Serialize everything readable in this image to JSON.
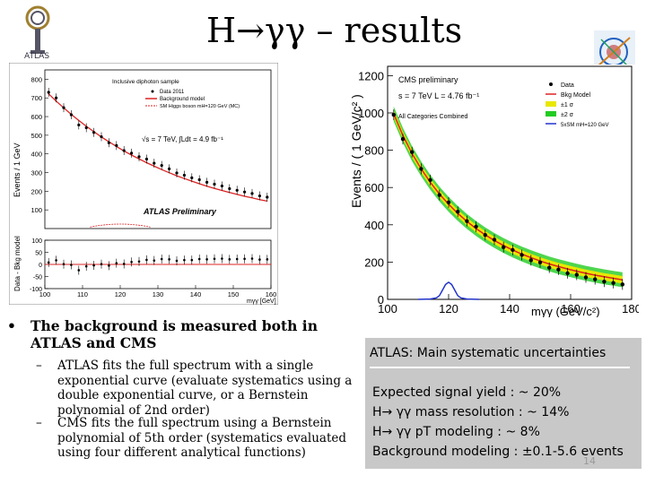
{
  "slide": {
    "title": "H→γγ – results",
    "atlas_logo_text": "ATLAS",
    "page_number": "14"
  },
  "bullets": {
    "main": "The background is measured both in ATLAS and CMS",
    "sub": [
      "ATLAS fits the full spectrum with a single exponential curve (evaluate systematics using a double exponential curve, or a Bernstein polynomial of 2nd order)",
      "CMS fits the full spectrum using a Bernstein polynomial of 5th order (systematics evaluated using four different analytical functions)"
    ]
  },
  "systematics": {
    "title": "ATLAS: Main systematic uncertainties",
    "items": [
      "Expected signal yield   : ~ 20%",
      "H→ γγ mass resolution : ~ 14%",
      "H→ γγ pT modeling        : ~ 8%",
      "Background modeling    : ±0.1-5.6 events"
    ]
  },
  "colors": {
    "fit_red": "#dd2222",
    "band_yellow": "#e8e800",
    "band_green": "#22cc22",
    "signal_blue": "#2233cc",
    "panel_grey": "#c8c8c8"
  },
  "chart_data": [
    {
      "type": "scatter",
      "name": "atlas",
      "title": "Inclusive diphoton sample",
      "legend": [
        "Data 2011",
        "Background model",
        "SM Higgs boson mH=120 GeV (MC)"
      ],
      "annotation_energy": "√s = 7 TeV, ∫Ldt = 4.9 fb⁻¹",
      "annotation_label": "ATLAS Preliminary",
      "ylabel": "Events / 1 GeV",
      "ylabel_lower": "Data - Bkg model",
      "xlabel": "mγγ [GeV]",
      "xlim": [
        100,
        160
      ],
      "ylim": [
        0,
        850
      ],
      "ylim_lower": [
        -100,
        100
      ],
      "x_ticks": [
        100,
        110,
        120,
        130,
        140,
        150,
        160
      ],
      "y_ticks": [
        100,
        200,
        300,
        400,
        500,
        600,
        700,
        800
      ],
      "y_ticks_lower": [
        -100,
        -50,
        0,
        50,
        100
      ],
      "x": [
        101,
        103,
        105,
        107,
        109,
        111,
        113,
        115,
        117,
        119,
        121,
        123,
        125,
        127,
        129,
        131,
        133,
        135,
        137,
        139,
        141,
        143,
        145,
        147,
        149,
        151,
        153,
        155,
        157,
        159
      ],
      "data": [
        730,
        700,
        648,
        610,
        555,
        540,
        515,
        492,
        460,
        445,
        418,
        404,
        385,
        372,
        350,
        338,
        320,
        298,
        286,
        272,
        262,
        248,
        238,
        228,
        214,
        205,
        196,
        188,
        175,
        168
      ],
      "bkg": [
        722,
        683,
        647,
        612,
        579,
        548,
        519,
        491,
        465,
        440,
        416,
        394,
        373,
        353,
        334,
        316,
        299,
        283,
        268,
        254,
        240,
        227,
        215,
        204,
        193,
        183,
        173,
        164,
        155,
        147
      ],
      "residuals": [
        8,
        17,
        1,
        -2,
        -24,
        -8,
        -4,
        1,
        -5,
        5,
        2,
        10,
        12,
        19,
        16,
        22,
        21,
        15,
        18,
        18,
        22,
        21,
        23,
        24,
        21,
        22,
        23,
        24,
        20,
        21
      ]
    },
    {
      "type": "scatter",
      "name": "cms",
      "title": "CMS preliminary",
      "annotation_energy": "s = 7 TeV L = 4.76 fb⁻¹",
      "annotation_categories": "All Categories Combined",
      "legend": [
        "Data",
        "Bkg Model",
        "±1 σ",
        "±2 σ",
        "5xSM mH=120 GeV"
      ],
      "ylabel": "Events / ( 1 GeV/c² )",
      "xlabel": "mγγ (GeV/c²)",
      "xlim": [
        100,
        180
      ],
      "ylim": [
        0,
        1250
      ],
      "x_ticks": [
        100,
        120,
        140,
        160,
        180
      ],
      "y_ticks": [
        0,
        200,
        400,
        600,
        800,
        1000,
        1200
      ],
      "x": [
        102,
        105,
        108,
        111,
        114,
        117,
        120,
        123,
        126,
        129,
        132,
        135,
        138,
        141,
        144,
        147,
        150,
        153,
        156,
        159,
        162,
        165,
        168,
        171,
        174,
        177
      ],
      "data": [
        990,
        860,
        790,
        700,
        640,
        560,
        520,
        470,
        420,
        390,
        345,
        320,
        280,
        265,
        238,
        210,
        198,
        170,
        160,
        140,
        132,
        118,
        108,
        95,
        88,
        80
      ],
      "bkg": [
        995,
        880,
        782,
        700,
        628,
        565,
        510,
        461,
        418,
        380,
        346,
        316,
        289,
        265,
        243,
        224,
        206,
        190,
        176,
        163,
        151,
        140,
        130,
        121,
        113,
        105
      ],
      "signal_x": [
        110,
        114,
        116,
        117,
        118,
        119,
        120,
        121,
        122,
        123,
        124,
        126,
        130
      ],
      "signal_y": [
        0,
        2,
        8,
        20,
        50,
        80,
        92,
        80,
        50,
        20,
        8,
        2,
        0
      ]
    }
  ]
}
